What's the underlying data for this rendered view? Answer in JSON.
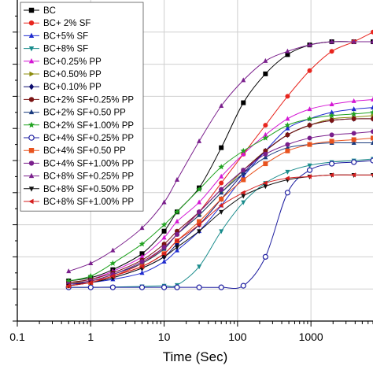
{
  "chart_data": {
    "type": "line",
    "title": "",
    "xlabel": "Time (Sec)",
    "ylabel": "",
    "x_scale": "log",
    "xlim": [
      0.1,
      7000
    ],
    "ylim": [
      0,
      100
    ],
    "grid": true,
    "legend_position": "top-left",
    "x_tick_labels": [
      "0.1",
      "1",
      "10",
      "100",
      "1000"
    ],
    "x_ticks": [
      0.1,
      1,
      10,
      100,
      1000
    ],
    "y_ticks": [
      0,
      10,
      20,
      30,
      40,
      50,
      60,
      70,
      80,
      90
    ],
    "x": [
      0.5,
      1,
      2,
      5,
      10,
      15,
      30,
      60,
      120,
      240,
      480,
      960,
      1920,
      3840,
      7000
    ],
    "series": [
      {
        "name": "BC",
        "color": "#000000",
        "marker": "square",
        "values": [
          12.5,
          13.5,
          16,
          21,
          28,
          34,
          41.5,
          54,
          68,
          77,
          83,
          86,
          87,
          87,
          87
        ]
      },
      {
        "name": "BC+ 2% SF",
        "color": "#e8251e",
        "marker": "circle",
        "values": [
          11.5,
          12.5,
          14,
          18,
          23,
          27,
          34,
          43,
          52,
          61,
          70,
          78,
          84,
          87,
          90
        ]
      },
      {
        "name": "BC+5% SF",
        "color": "#1f2bcf",
        "marker": "triangle-up",
        "values": [
          11,
          12,
          13,
          15,
          18.5,
          22,
          28,
          36,
          45,
          53,
          60,
          63,
          65,
          66,
          66.5
        ]
      },
      {
        "name": "BC+8% SF",
        "color": "#1a8c8c",
        "marker": "triangle-down",
        "values": [
          10.5,
          10.5,
          10.6,
          10.8,
          11,
          11.2,
          17,
          28,
          37,
          43,
          46.5,
          48.5,
          49.5,
          50,
          50.5
        ]
      },
      {
        "name": "BC+0.25% PP",
        "color": "#d417d4",
        "marker": "triangle-up",
        "values": [
          12,
          13,
          15.5,
          20,
          26,
          31,
          37,
          45,
          52,
          58,
          63,
          66,
          67.5,
          68.5,
          69
        ]
      },
      {
        "name": "BC+0.50% PP",
        "color": "#8c8c0d",
        "marker": "triangle-right",
        "values": [
          12,
          12.5,
          14.5,
          18,
          22.5,
          27,
          33,
          40,
          47,
          53,
          58,
          61,
          63,
          63.5,
          64
        ]
      },
      {
        "name": "BC+0.10%  PP",
        "color": "#0d0d6e",
        "marker": "diamond",
        "values": [
          11.5,
          12,
          13.5,
          16.5,
          20,
          24,
          30,
          38,
          46,
          53,
          58,
          61,
          62.5,
          63,
          63
        ]
      },
      {
        "name": "BC+2% SF+0.25% PP",
        "color": "#7a1313",
        "marker": "circle",
        "values": [
          12,
          13,
          15,
          19,
          24,
          28,
          34,
          41,
          47,
          53,
          58,
          61,
          62.5,
          63,
          63
        ]
      },
      {
        "name": "BC+2% SF+0.50 PP",
        "color": "#1a3b7e",
        "marker": "triangle-up",
        "values": [
          11.5,
          12.5,
          14.5,
          18,
          22.5,
          27,
          33,
          40,
          46,
          51,
          54,
          55,
          55.5,
          55.5,
          55.5
        ]
      },
      {
        "name": "BC+2% SF+1.00% PP",
        "color": "#21a321",
        "marker": "star",
        "values": [
          12.5,
          14,
          18,
          24,
          30,
          34,
          41,
          48,
          53,
          57,
          61,
          63,
          64,
          64.5,
          65
        ]
      },
      {
        "name": "BC+4% SF+0.25% PP",
        "color": "#1f1fa0",
        "marker": "circle-open",
        "values": [
          10.5,
          10.5,
          10.5,
          10.5,
          10.5,
          10.5,
          10.5,
          10.5,
          11,
          20,
          40,
          47,
          49,
          49.5,
          50
        ]
      },
      {
        "name": "BC+4% SF+0.50 PP",
        "color": "#e8531e",
        "marker": "square",
        "values": [
          11,
          12,
          14,
          17,
          21,
          25,
          31,
          38,
          44,
          49,
          53,
          55,
          56,
          56.5,
          57
        ]
      },
      {
        "name": "BC+4% SF+1.00% PP",
        "color": "#7a1f8c",
        "marker": "circle",
        "values": [
          11.5,
          12.5,
          14.5,
          18.5,
          23,
          27,
          34,
          41,
          47,
          52,
          55,
          57,
          58,
          58.5,
          59
        ]
      },
      {
        "name": "BC+8% SF+0.25% PP",
        "color": "#7a1f8c",
        "marker": "triangle-up",
        "values": [
          15.5,
          18,
          22,
          29,
          37,
          44,
          56,
          67,
          75,
          81,
          84,
          86,
          87,
          87,
          87
        ]
      },
      {
        "name": "BC+8% SF+0.50% PP",
        "color": "#111111",
        "marker": "triangle-down",
        "values": [
          11,
          12,
          13.5,
          16.5,
          20,
          23,
          28,
          34,
          39,
          42,
          44,
          45,
          45.5,
          45.5,
          45.5
        ]
      },
      {
        "name": "BC+8% SF+1.00% PP",
        "color": "#d41f1f",
        "marker": "triangle-left",
        "values": [
          11,
          12,
          14,
          17,
          21,
          25,
          30,
          36,
          40,
          43,
          44.5,
          45,
          45.5,
          45.5,
          45.5
        ]
      }
    ]
  }
}
